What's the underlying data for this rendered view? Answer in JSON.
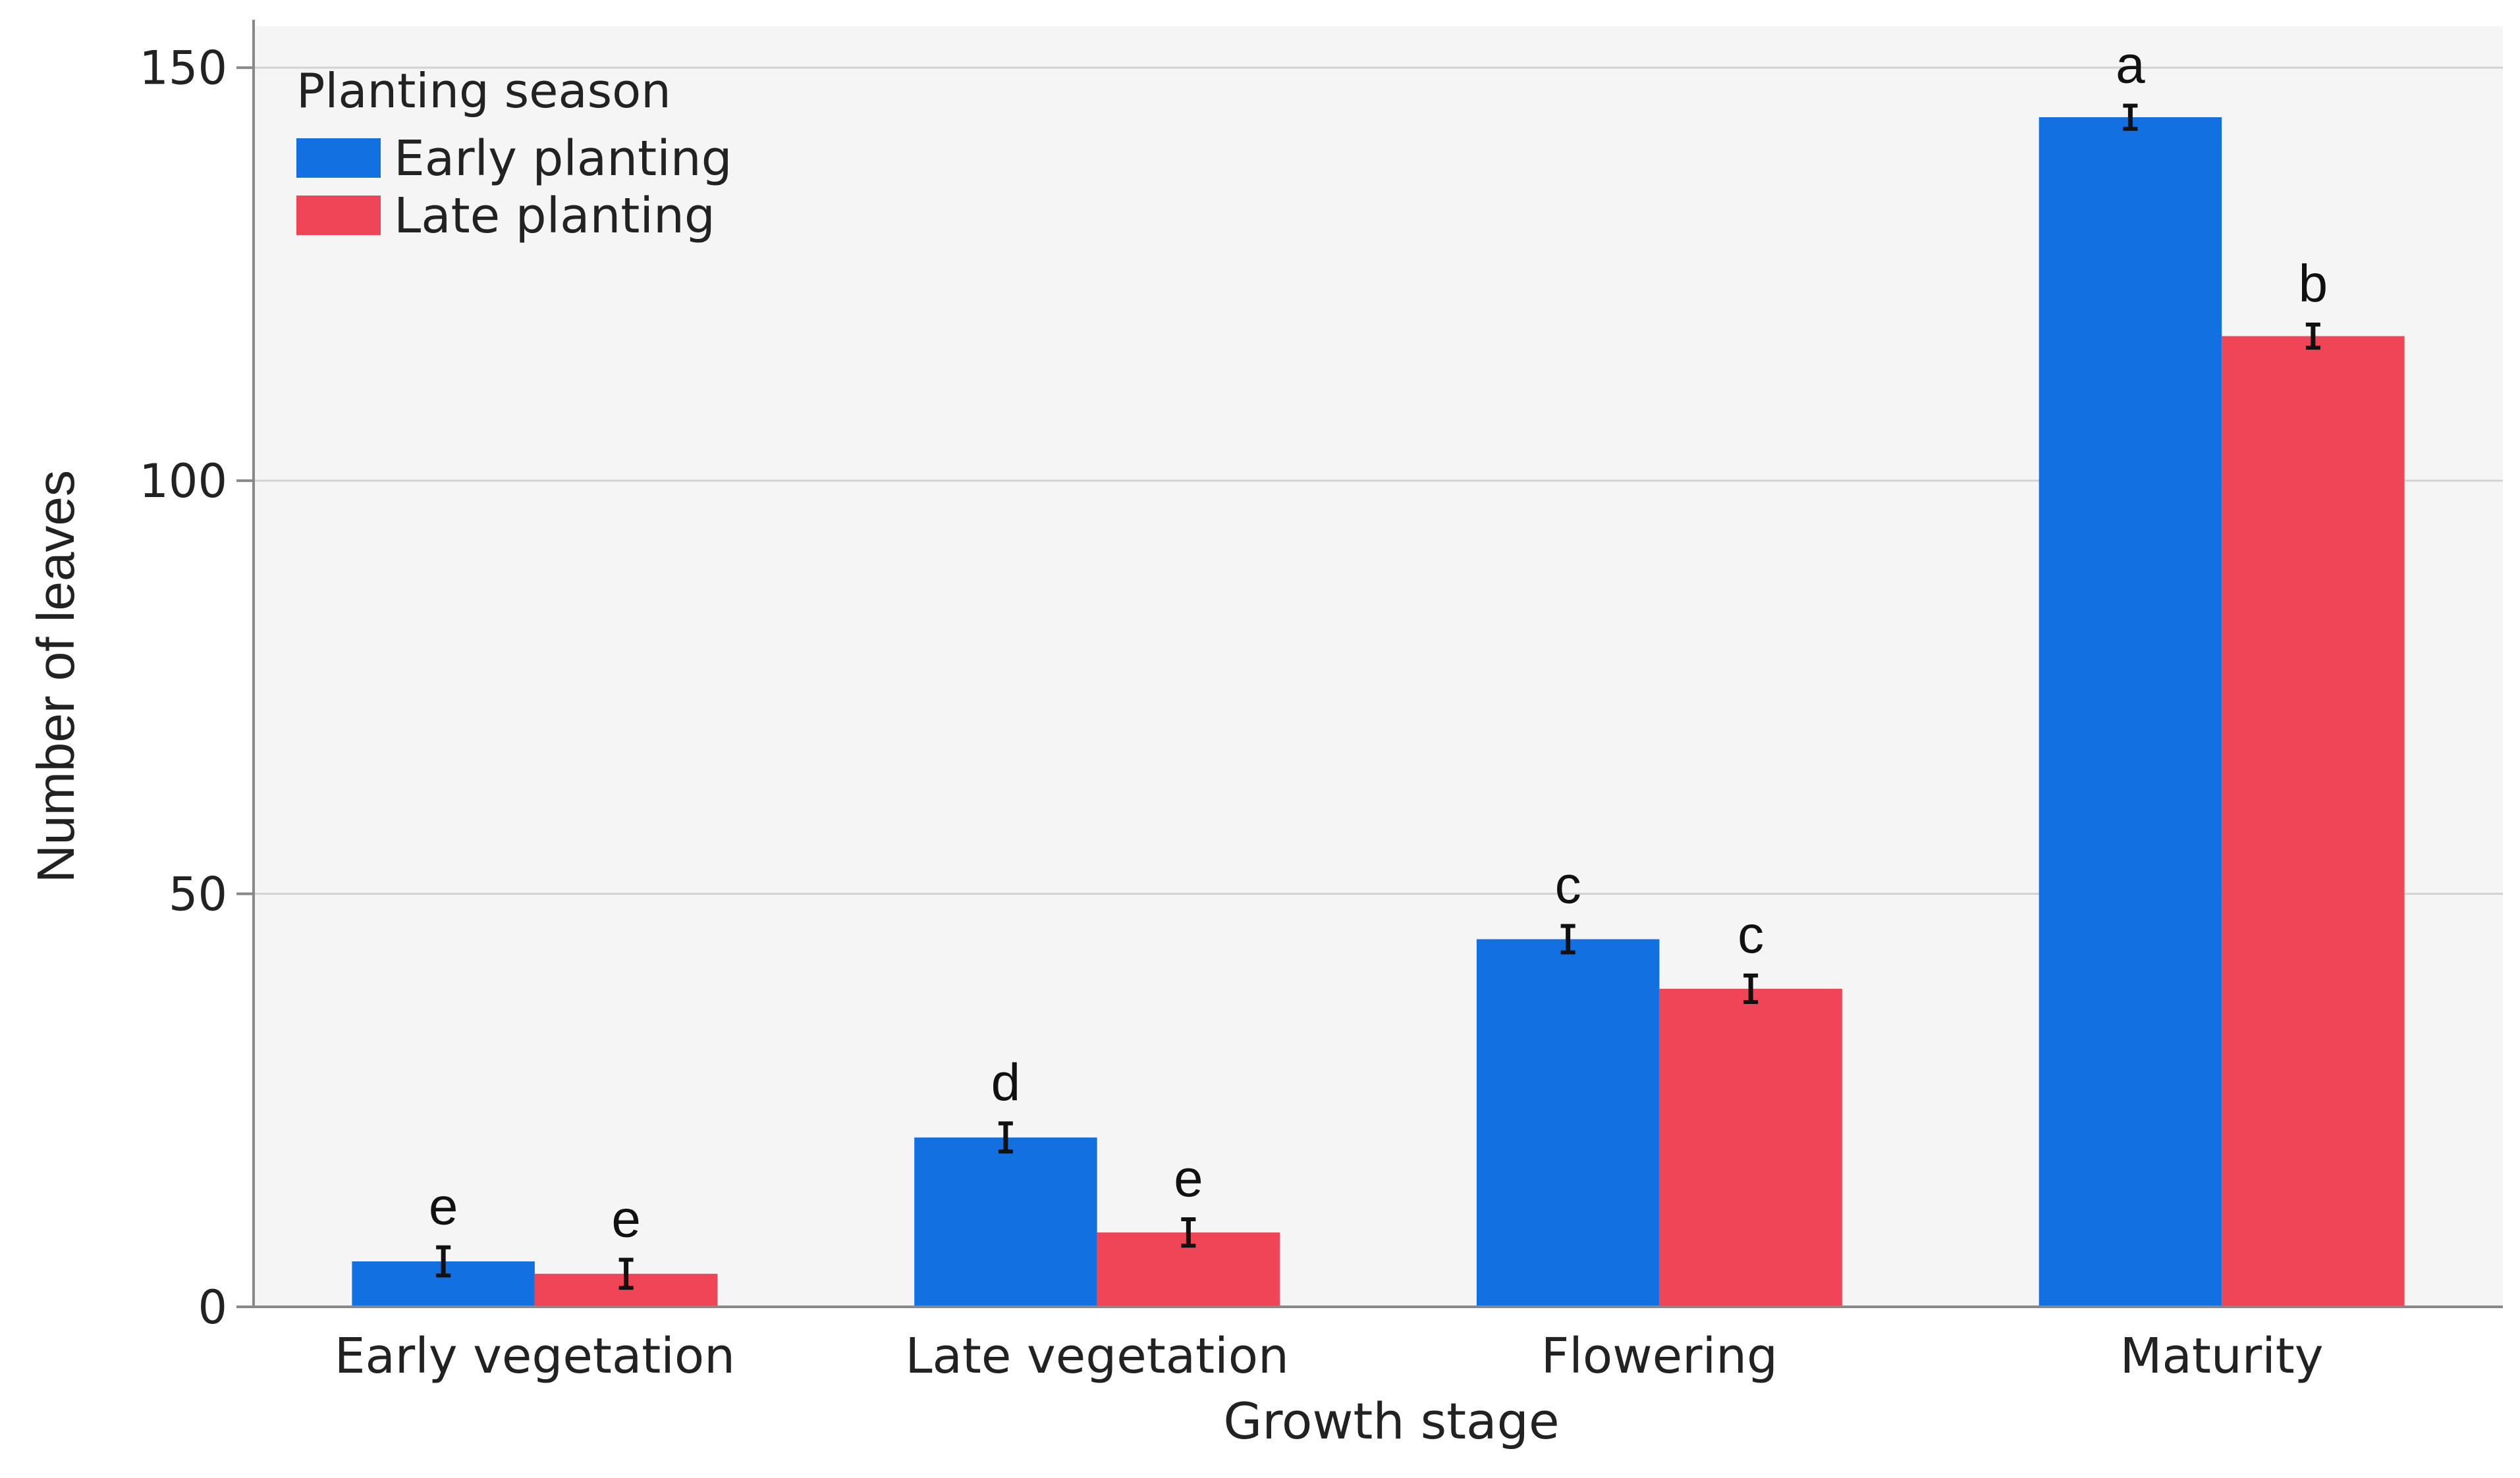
{
  "colors": {
    "early": "#1370E0",
    "late": "#F04556",
    "plot_background": "#F5F5F5",
    "axis": "#888888",
    "gridline": "#D2D2D2",
    "error_bar": "#111111"
  },
  "chart_data": {
    "type": "bar",
    "title": "",
    "xlabel": "Growth stage",
    "ylabel": "Number of leaves",
    "ylim": [
      0,
      155
    ],
    "yticks": [
      0,
      50,
      100,
      150
    ],
    "categories": [
      "Early vegetation",
      "Late vegetation",
      "Flowering",
      "Maturity"
    ],
    "legend": {
      "title": "Planting season",
      "position": "top-left"
    },
    "series": [
      {
        "name": "Early planting",
        "color_key": "early",
        "values": [
          5.5,
          20.5,
          44.5,
          144
        ],
        "errors": [
          1.7,
          1.7,
          1.6,
          1.4
        ],
        "letters": [
          "e",
          "d",
          "c",
          "a"
        ]
      },
      {
        "name": "Late planting",
        "color_key": "late",
        "values": [
          4,
          9,
          38.5,
          117.5
        ],
        "errors": [
          1.7,
          1.6,
          1.6,
          1.4
        ],
        "letters": [
          "e",
          "e",
          "c",
          "b"
        ]
      }
    ]
  }
}
